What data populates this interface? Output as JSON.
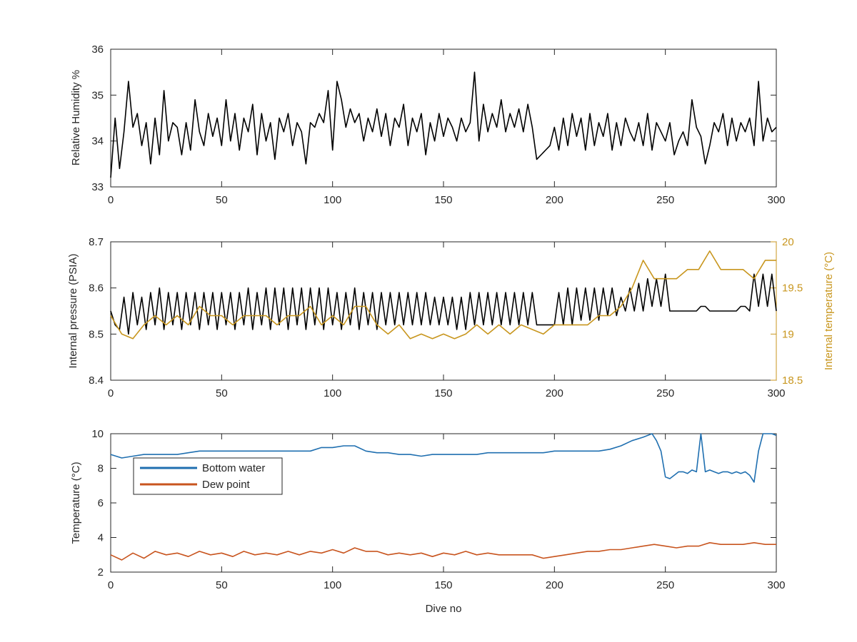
{
  "colors": {
    "axis": "#262626",
    "rh_line": "#000000",
    "pressure_line": "#000000",
    "internal_temp_line": "#C8961E",
    "bottom_water_line": "#1F6FB0",
    "dew_point_line": "#C8541E"
  },
  "chart_data": [
    {
      "type": "line",
      "id": "rh",
      "xlabel": "",
      "ylabel": "Relative Humidity %",
      "xlim": [
        0,
        300
      ],
      "ylim": [
        33,
        36
      ],
      "xticks": [
        "0",
        "50",
        "100",
        "150",
        "200",
        "250",
        "300"
      ],
      "yticks": [
        "33",
        "34",
        "35",
        "36"
      ],
      "grid": false,
      "series": [
        {
          "x": [
            0,
            2,
            4,
            6,
            8,
            10,
            12,
            14,
            16,
            18,
            20,
            22,
            24,
            26,
            28,
            30,
            32,
            34,
            36,
            38,
            40,
            42,
            44,
            46,
            48,
            50,
            52,
            54,
            56,
            58,
            60,
            62,
            64,
            66,
            68,
            70,
            72,
            74,
            76,
            78,
            80,
            82,
            84,
            86,
            88,
            90,
            92,
            94,
            96,
            98,
            100,
            102,
            104,
            106,
            108,
            110,
            112,
            114,
            116,
            118,
            120,
            122,
            124,
            126,
            128,
            130,
            132,
            134,
            136,
            138,
            140,
            142,
            144,
            146,
            148,
            150,
            152,
            154,
            156,
            158,
            160,
            162,
            164,
            166,
            168,
            170,
            172,
            174,
            176,
            178,
            180,
            182,
            184,
            186,
            188,
            190,
            192,
            194,
            196,
            198,
            200,
            202,
            204,
            206,
            208,
            210,
            212,
            214,
            216,
            218,
            220,
            222,
            224,
            226,
            228,
            230,
            232,
            234,
            236,
            238,
            240,
            242,
            244,
            246,
            248,
            250,
            252,
            254,
            256,
            258,
            260,
            262,
            264,
            266,
            268,
            270,
            272,
            274,
            276,
            278,
            280,
            282,
            284,
            286,
            288,
            290,
            292,
            294,
            296,
            298,
            300
          ],
          "y": [
            33.2,
            34.5,
            33.4,
            34.2,
            35.3,
            34.3,
            34.6,
            33.9,
            34.4,
            33.5,
            34.5,
            33.7,
            35.1,
            34.0,
            34.4,
            34.3,
            33.7,
            34.4,
            33.8,
            34.9,
            34.2,
            33.9,
            34.6,
            34.1,
            34.5,
            33.9,
            34.9,
            34.0,
            34.6,
            33.8,
            34.5,
            34.2,
            34.8,
            33.7,
            34.6,
            34.0,
            34.4,
            33.6,
            34.5,
            34.2,
            34.6,
            33.9,
            34.4,
            34.2,
            33.5,
            34.4,
            34.3,
            34.6,
            34.4,
            35.1,
            33.8,
            35.3,
            34.9,
            34.3,
            34.7,
            34.4,
            34.6,
            34.0,
            34.5,
            34.2,
            34.7,
            34.1,
            34.6,
            33.9,
            34.5,
            34.3,
            34.8,
            33.9,
            34.5,
            34.2,
            34.6,
            33.7,
            34.4,
            34.0,
            34.6,
            34.1,
            34.5,
            34.3,
            34.0,
            34.5,
            34.2,
            34.4,
            35.5,
            34.0,
            34.8,
            34.2,
            34.6,
            34.3,
            34.9,
            34.2,
            34.6,
            34.3,
            34.7,
            34.2,
            34.8,
            34.3,
            33.6,
            33.7,
            33.8,
            33.9,
            34.3,
            33.8,
            34.5,
            33.9,
            34.6,
            34.1,
            34.5,
            33.8,
            34.6,
            33.9,
            34.4,
            34.1,
            34.6,
            33.8,
            34.4,
            33.9,
            34.5,
            34.2,
            34.0,
            34.4,
            33.9,
            34.6,
            33.8,
            34.4,
            34.2,
            34.0,
            34.4,
            33.7,
            34.0,
            34.2,
            33.9,
            34.9,
            34.3,
            34.1,
            33.5,
            33.9,
            34.4,
            34.2,
            34.6,
            33.9,
            34.5,
            34.0,
            34.4,
            34.2,
            34.5,
            33.9,
            35.3,
            34.0,
            34.5,
            34.2,
            34.3
          ]
        }
      ]
    },
    {
      "type": "line",
      "id": "pressure",
      "xlabel": "",
      "ylabel": "Internal pressure (PSIA)",
      "ylabel_right": "Internal temperature (°C)",
      "xlim": [
        0,
        300
      ],
      "ylim": [
        8.4,
        8.7
      ],
      "ylim_right": [
        18.5,
        20
      ],
      "xticks": [
        "0",
        "50",
        "100",
        "150",
        "200",
        "250",
        "300"
      ],
      "yticks": [
        "8.4",
        "8.5",
        "8.6",
        "8.7"
      ],
      "yticks_right": [
        "18.5",
        "19",
        "19.5",
        "20"
      ],
      "grid": false,
      "series": [
        {
          "axis": "left",
          "x": [
            0,
            2,
            4,
            6,
            8,
            10,
            12,
            14,
            16,
            18,
            20,
            22,
            24,
            26,
            28,
            30,
            32,
            34,
            36,
            38,
            40,
            42,
            44,
            46,
            48,
            50,
            52,
            54,
            56,
            58,
            60,
            62,
            64,
            66,
            68,
            70,
            72,
            74,
            76,
            78,
            80,
            82,
            84,
            86,
            88,
            90,
            92,
            94,
            96,
            98,
            100,
            102,
            104,
            106,
            108,
            110,
            112,
            114,
            116,
            118,
            120,
            122,
            124,
            126,
            128,
            130,
            132,
            134,
            136,
            138,
            140,
            142,
            144,
            146,
            148,
            150,
            152,
            154,
            156,
            158,
            160,
            162,
            164,
            166,
            168,
            170,
            172,
            174,
            176,
            178,
            180,
            182,
            184,
            186,
            188,
            190,
            192,
            194,
            196,
            198,
            200,
            202,
            204,
            206,
            208,
            210,
            212,
            214,
            216,
            218,
            220,
            222,
            224,
            226,
            228,
            230,
            232,
            234,
            236,
            238,
            240,
            242,
            244,
            246,
            248,
            250,
            252,
            254,
            256,
            258,
            260,
            262,
            264,
            266,
            268,
            270,
            272,
            274,
            276,
            278,
            280,
            282,
            284,
            286,
            288,
            290,
            292,
            294,
            296,
            298,
            300
          ],
          "y": [
            8.55,
            8.52,
            8.51,
            8.58,
            8.5,
            8.59,
            8.52,
            8.58,
            8.51,
            8.59,
            8.52,
            8.6,
            8.51,
            8.59,
            8.52,
            8.59,
            8.51,
            8.59,
            8.52,
            8.59,
            8.51,
            8.59,
            8.52,
            8.59,
            8.51,
            8.59,
            8.52,
            8.59,
            8.51,
            8.59,
            8.52,
            8.6,
            8.51,
            8.59,
            8.52,
            8.6,
            8.51,
            8.6,
            8.52,
            8.6,
            8.51,
            8.6,
            8.52,
            8.6,
            8.51,
            8.6,
            8.52,
            8.6,
            8.51,
            8.6,
            8.52,
            8.59,
            8.51,
            8.59,
            8.52,
            8.6,
            8.51,
            8.59,
            8.52,
            8.59,
            8.51,
            8.59,
            8.52,
            8.59,
            8.52,
            8.59,
            8.52,
            8.59,
            8.52,
            8.59,
            8.52,
            8.59,
            8.52,
            8.58,
            8.52,
            8.58,
            8.52,
            8.58,
            8.51,
            8.58,
            8.51,
            8.59,
            8.52,
            8.59,
            8.52,
            8.59,
            8.52,
            8.59,
            8.52,
            8.59,
            8.52,
            8.59,
            8.52,
            8.59,
            8.52,
            8.59,
            8.52,
            8.52,
            8.52,
            8.52,
            8.52,
            8.59,
            8.52,
            8.6,
            8.52,
            8.6,
            8.53,
            8.6,
            8.53,
            8.6,
            8.53,
            8.6,
            8.54,
            8.6,
            8.54,
            8.58,
            8.55,
            8.6,
            8.55,
            8.61,
            8.55,
            8.62,
            8.56,
            8.62,
            8.56,
            8.63,
            8.55,
            8.55,
            8.55,
            8.55,
            8.55,
            8.55,
            8.55,
            8.56,
            8.56,
            8.55,
            8.55,
            8.55,
            8.55,
            8.55,
            8.55,
            8.55,
            8.56,
            8.56,
            8.55,
            8.63,
            8.56,
            8.63,
            8.56,
            8.63,
            8.55
          ]
        },
        {
          "axis": "right",
          "x": [
            0,
            5,
            10,
            15,
            20,
            25,
            30,
            35,
            40,
            45,
            50,
            55,
            60,
            65,
            70,
            75,
            80,
            85,
            90,
            95,
            100,
            105,
            110,
            115,
            120,
            125,
            130,
            135,
            140,
            145,
            150,
            155,
            160,
            165,
            170,
            175,
            180,
            185,
            190,
            195,
            200,
            205,
            210,
            215,
            220,
            225,
            230,
            235,
            240,
            245,
            250,
            255,
            260,
            265,
            270,
            275,
            280,
            285,
            290,
            295,
            300
          ],
          "y": [
            19.2,
            19.0,
            18.95,
            19.1,
            19.2,
            19.1,
            19.2,
            19.1,
            19.3,
            19.2,
            19.2,
            19.1,
            19.2,
            19.2,
            19.2,
            19.1,
            19.2,
            19.2,
            19.3,
            19.1,
            19.2,
            19.1,
            19.3,
            19.3,
            19.1,
            19.0,
            19.1,
            18.95,
            19.0,
            18.95,
            19.0,
            18.95,
            19.0,
            19.1,
            19.0,
            19.1,
            19.0,
            19.1,
            19.05,
            19.0,
            19.1,
            19.1,
            19.1,
            19.1,
            19.2,
            19.2,
            19.3,
            19.5,
            19.8,
            19.6,
            19.6,
            19.6,
            19.7,
            19.7,
            19.9,
            19.7,
            19.7,
            19.7,
            19.6,
            19.8,
            19.8
          ]
        }
      ]
    },
    {
      "type": "line",
      "id": "temperature",
      "xlabel": "Dive no",
      "ylabel": "Temperature (°C)",
      "xlim": [
        0,
        300
      ],
      "ylim": [
        2,
        10
      ],
      "xticks": [
        "0",
        "50",
        "100",
        "150",
        "200",
        "250",
        "300"
      ],
      "yticks": [
        "2",
        "4",
        "6",
        "8",
        "10"
      ],
      "grid": false,
      "legend_position": "top-left",
      "series": [
        {
          "name": "Bottom water",
          "x": [
            0,
            5,
            10,
            15,
            20,
            25,
            30,
            35,
            40,
            45,
            50,
            55,
            60,
            65,
            70,
            75,
            80,
            85,
            90,
            95,
            100,
            105,
            110,
            115,
            120,
            125,
            130,
            135,
            140,
            145,
            150,
            155,
            160,
            165,
            170,
            175,
            180,
            185,
            190,
            195,
            200,
            205,
            210,
            215,
            220,
            225,
            230,
            235,
            240,
            244,
            246,
            248,
            250,
            252,
            254,
            256,
            258,
            260,
            262,
            264,
            266,
            268,
            270,
            272,
            274,
            276,
            278,
            280,
            282,
            284,
            286,
            288,
            290,
            292,
            294,
            296,
            298,
            300
          ],
          "y": [
            8.8,
            8.6,
            8.7,
            8.8,
            8.8,
            8.8,
            8.8,
            8.9,
            9.0,
            9.0,
            9.0,
            9.0,
            9.0,
            9.0,
            9.0,
            9.0,
            9.0,
            9.0,
            9.0,
            9.2,
            9.2,
            9.3,
            9.3,
            9.0,
            8.9,
            8.9,
            8.8,
            8.8,
            8.7,
            8.8,
            8.8,
            8.8,
            8.8,
            8.8,
            8.9,
            8.9,
            8.9,
            8.9,
            8.9,
            8.9,
            9.0,
            9.0,
            9.0,
            9.0,
            9.0,
            9.1,
            9.3,
            9.6,
            9.8,
            10.0,
            9.6,
            9.0,
            7.5,
            7.4,
            7.6,
            7.8,
            7.8,
            7.7,
            7.9,
            7.8,
            10.0,
            7.8,
            7.9,
            7.8,
            7.7,
            7.8,
            7.8,
            7.7,
            7.8,
            7.7,
            7.8,
            7.6,
            7.2,
            9.0,
            10.0,
            10.0,
            10.0,
            9.9
          ]
        },
        {
          "name": "Dew point",
          "x": [
            0,
            5,
            10,
            15,
            20,
            25,
            30,
            35,
            40,
            45,
            50,
            55,
            60,
            65,
            70,
            75,
            80,
            85,
            90,
            95,
            100,
            105,
            110,
            115,
            120,
            125,
            130,
            135,
            140,
            145,
            150,
            155,
            160,
            165,
            170,
            175,
            180,
            185,
            190,
            195,
            200,
            205,
            210,
            215,
            220,
            225,
            230,
            235,
            240,
            245,
            250,
            255,
            260,
            265,
            270,
            275,
            280,
            285,
            290,
            295,
            300
          ],
          "y": [
            3.0,
            2.7,
            3.1,
            2.8,
            3.2,
            3.0,
            3.1,
            2.9,
            3.2,
            3.0,
            3.1,
            2.9,
            3.2,
            3.0,
            3.1,
            3.0,
            3.2,
            3.0,
            3.2,
            3.1,
            3.3,
            3.1,
            3.4,
            3.2,
            3.2,
            3.0,
            3.1,
            3.0,
            3.1,
            2.9,
            3.1,
            3.0,
            3.2,
            3.0,
            3.1,
            3.0,
            3.0,
            3.0,
            3.0,
            2.8,
            2.9,
            3.0,
            3.1,
            3.2,
            3.2,
            3.3,
            3.3,
            3.4,
            3.5,
            3.6,
            3.5,
            3.4,
            3.5,
            3.5,
            3.7,
            3.6,
            3.6,
            3.6,
            3.7,
            3.6,
            3.6
          ]
        }
      ]
    }
  ]
}
